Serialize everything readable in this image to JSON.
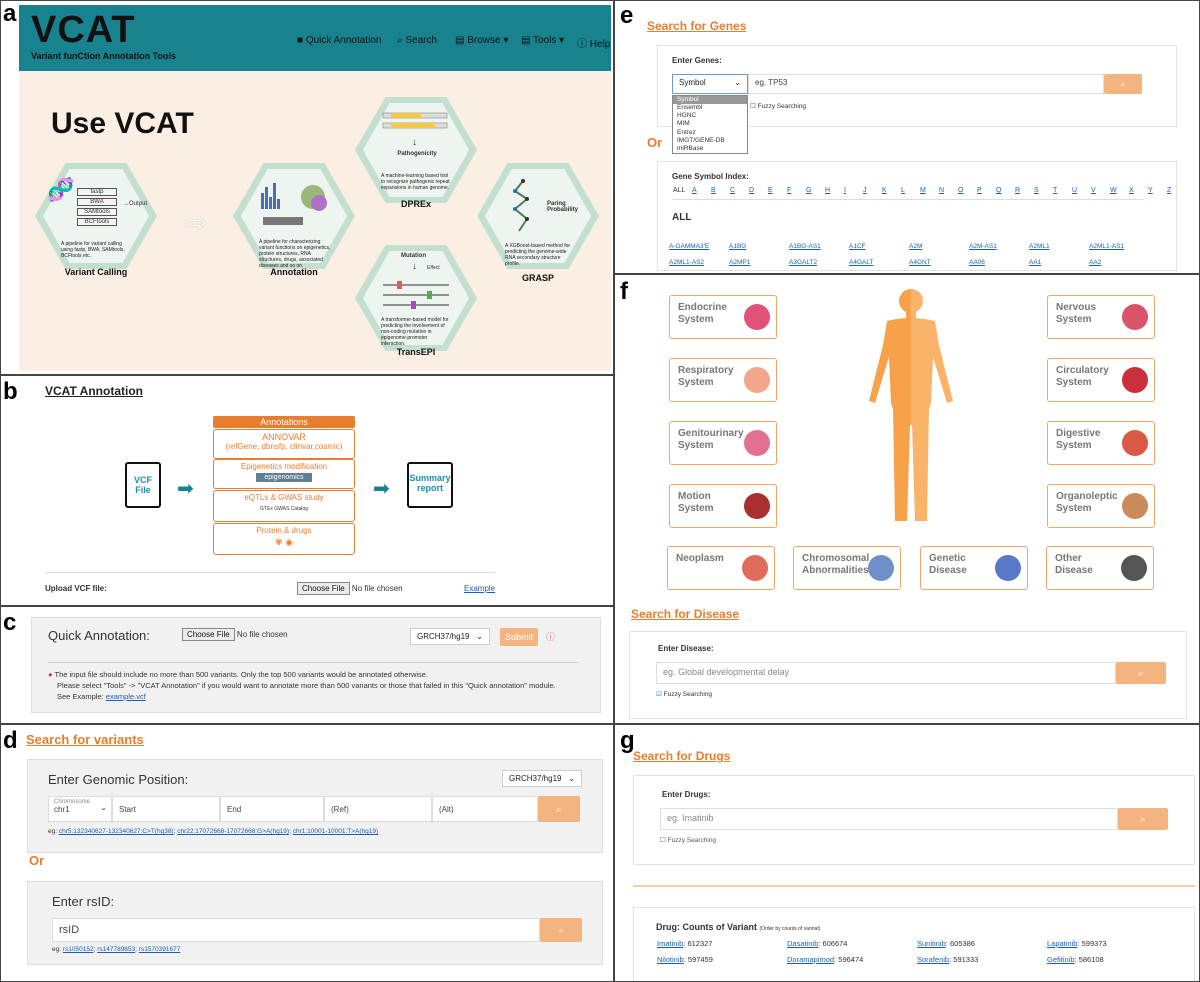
{
  "labels": {
    "a": "a",
    "b": "b",
    "c": "c",
    "d": "d",
    "e": "e",
    "f": "f",
    "g": "g"
  },
  "panel_a": {
    "logo": "VCAT",
    "subtitle": "Variant funCtion Annotation Tools",
    "nav": [
      "Quick Annotation",
      "Search",
      "Browse",
      "Tools",
      "Help"
    ],
    "heading": "Use VCAT",
    "pills": [
      "fastp",
      "BWA",
      "SAMtools",
      "BCFtools"
    ],
    "output_label": "Output",
    "pipelines": [
      {
        "title": "Variant Calling",
        "desc": "A pipeline for variant calling using fastp, BWA, SAMtools, BCFtools etc."
      },
      {
        "title": "Annotation",
        "desc": "A pipeline for characterizing variant functions on epigenetics, protein structures, RNA structures, drugs, associated diseases and so on."
      },
      {
        "title": "DPREx",
        "desc": "A machine-learning based tool to recognize pathogenic repeat expansions in human genome.",
        "caption": "Pathogenicity"
      },
      {
        "title": "TransEPI",
        "desc": "A transformer-based model for predicting the involvement of non-coding mutation in epigenome-promoter interaction.",
        "caption": "Mutation",
        "caption2": "Effect"
      },
      {
        "title": "GRASP",
        "desc": "A XGBoost-based method for predicting the genome-wide RNA secondary structure profile.",
        "caption": "Paring Probability"
      }
    ]
  },
  "panel_b": {
    "title": "VCAT Annotation",
    "vcf_label": "VCF File",
    "summary_label": "Summary report",
    "annotations_header": "Annotations",
    "boxes": [
      {
        "title": "ANNOVAR",
        "sub": "(refGene, dbnsfp, clinvar,cosmic)"
      },
      {
        "title": "Epigenetics modification",
        "sub": "epigenomics"
      },
      {
        "title": "eQTLs & GWAS study",
        "sub": "GTEx    GWAS Catalog"
      },
      {
        "title": "Protein & drugs",
        "sub": ""
      }
    ],
    "upload_label": "Upload VCF file:",
    "choose_file": "Choose File",
    "no_file": "No file chosen",
    "example": "Example"
  },
  "panel_c": {
    "title": "Quick Annotation:",
    "choose_file": "Choose File",
    "no_file": "No file chosen",
    "genome": "GRCH37/hg19",
    "submit": "Submit",
    "note1": "The input file should include no more than 500 variants. Only the top 500 variants would be annotated otherwise.",
    "note2": "Please select \"Tools\" -> \"VCAT Annotation\" if you would want to annotate more than 500 variants or those that failed in this \"Quick annotation\" module.",
    "note3": "See Example:",
    "example_link": "example.vcf"
  },
  "panel_d": {
    "title": "Search for variants",
    "genomic_label": "Enter Genomic Position:",
    "genome": "GRCH37/hg19",
    "chrom_label": "Chromosome",
    "chrom_value": "chr1",
    "fields": [
      "Start",
      "End",
      "(Ref)",
      "(Alt)"
    ],
    "eg_prefix": "eg:",
    "examples": [
      "chr5:132340627-132340627:C>T(hg38)",
      "chr22:17072668-17072668:G>A(hg19)",
      "chr1:10001-10001:T>A(hg19)"
    ],
    "or": "Or",
    "rsid_label": "Enter rsID:",
    "rsid_placeholder": "rsID",
    "rs_examples": [
      "rs1050152",
      "rs147789853",
      "rs1570391677"
    ]
  },
  "panel_e": {
    "title": "Search for Genes",
    "enter_label": "Enter Genes:",
    "select_value": "Symbol",
    "options": [
      "Symbol",
      "Ensembl",
      "HGNC",
      "MIM",
      "Entrez",
      "IMGT/GENE-DB",
      "miRBase"
    ],
    "placeholder": "eg. TP53",
    "fuzzy": "Fuzzy Searching",
    "or": "Or",
    "index_label": "Gene Symbol Index:",
    "letters": [
      "ALL",
      "A",
      "B",
      "C",
      "D",
      "E",
      "F",
      "G",
      "H",
      "I",
      "J",
      "K",
      "L",
      "M",
      "N",
      "O",
      "P",
      "Q",
      "R",
      "S",
      "T",
      "U",
      "V",
      "W",
      "X",
      "Y",
      "Z"
    ],
    "all_heading": "ALL",
    "genes": [
      "A-GAMMA3'E",
      "A1BG",
      "A1BG-AS1",
      "A1CF",
      "A2M",
      "A2M-AS1",
      "A2ML1",
      "A2ML1-AS1",
      "A2ML1-AS2",
      "A2MP1",
      "A3GALT2",
      "A4GALT",
      "A4GNT",
      "AA06",
      "AA1",
      "AA2"
    ]
  },
  "panel_f": {
    "systems_left": [
      {
        "name": "Endocrine System",
        "color": "#e0527a"
      },
      {
        "name": "Respiratory System",
        "color": "#f2a68a"
      },
      {
        "name": "Genitourinary System",
        "color": "#e3708f"
      },
      {
        "name": "Motion System",
        "color": "#a8302e"
      }
    ],
    "systems_right": [
      {
        "name": "Nervous System",
        "color": "#d9536b"
      },
      {
        "name": "Circulatory System",
        "color": "#c8303a"
      },
      {
        "name": "Digestive System",
        "color": "#d85a45"
      },
      {
        "name": "Organoleptic System",
        "color": "#c98b5c"
      }
    ],
    "systems_bottom": [
      {
        "name": "Neoplasm",
        "color": "#e06d5a"
      },
      {
        "name": "Chromosomal Abnormalities",
        "color": "#6f8fc9"
      },
      {
        "name": "Genetic Disease",
        "color": "#5a78c9"
      },
      {
        "name": "Other Disease",
        "color": "#555555"
      }
    ],
    "search_title": "Search for Disease",
    "enter_label": "Enter Disease:",
    "placeholder": "eg. Global developmental delay",
    "fuzzy": "Fuzzy Searching"
  },
  "panel_g": {
    "title": "Search for Drugs",
    "enter_label": "Enter Drugs:",
    "placeholder": "eg. Imatinib",
    "fuzzy": "Fuzzy Searching",
    "counts_title": "Drug: Counts of Variant",
    "counts_note": "(Order by counts of varinat)",
    "drugs": [
      {
        "name": "Imatinib",
        "count": "612327"
      },
      {
        "name": "Dasatinib",
        "count": "606674"
      },
      {
        "name": "Sunitinib",
        "count": "605386"
      },
      {
        "name": "Lapatinib",
        "count": "599373"
      },
      {
        "name": "Nilotinib",
        "count": "597459"
      },
      {
        "name": "Doramapimod",
        "count": "596474"
      },
      {
        "name": "Sorafenib",
        "count": "591333"
      },
      {
        "name": "Gefitinib",
        "count": "586108"
      }
    ]
  },
  "colors": {
    "teal": "#18828f",
    "orange": "#e87d2f",
    "button": "#f3b47f",
    "link": "#1a5fb4"
  }
}
